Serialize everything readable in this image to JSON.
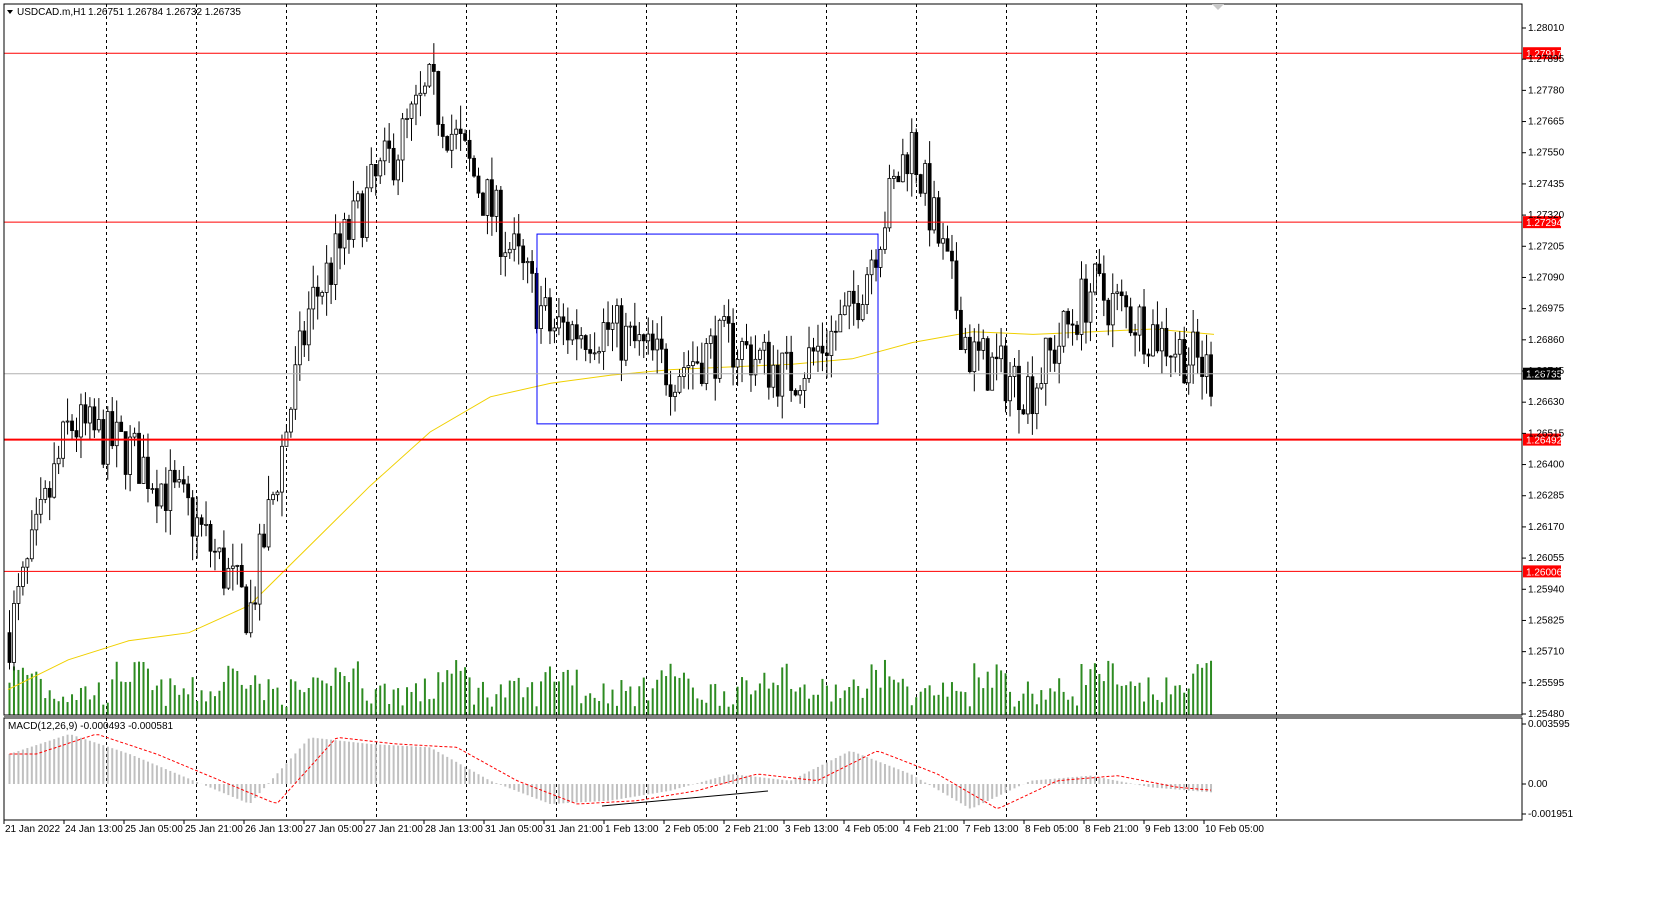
{
  "chart_header": {
    "symbol_label": "USDCAD.m,H1",
    "ohlc": "1.26751 1.26784 1.26732 1.26735"
  },
  "price_axis": {
    "ticks": [
      "1.28010",
      "1.27895",
      "1.27780",
      "1.27665",
      "1.27550",
      "1.27435",
      "1.27320",
      "1.27205",
      "1.27090",
      "1.26975",
      "1.26860",
      "1.26745",
      "1.26630",
      "1.26515",
      "1.26400",
      "1.26285",
      "1.26170",
      "1.26055",
      "1.25940",
      "1.25825",
      "1.25710",
      "1.25595",
      "1.25480"
    ]
  },
  "time_axis": {
    "labels": [
      "21 Jan 2022",
      "24 Jan 13:00",
      "25 Jan 05:00",
      "25 Jan 21:00",
      "26 Jan 13:00",
      "27 Jan 05:00",
      "27 Jan 21:00",
      "28 Jan 13:00",
      "31 Jan 05:00",
      "31 Jan 21:00",
      "1 Feb 13:00",
      "2 Feb 05:00",
      "2 Feb 21:00",
      "3 Feb 13:00",
      "4 Feb 05:00",
      "4 Feb 21:00",
      "7 Feb 13:00",
      "8 Feb 05:00",
      "8 Feb 21:00",
      "9 Feb 13:00",
      "10 Feb 05:00"
    ]
  },
  "levels": [
    {
      "price": 1.27917,
      "label": "1.27917",
      "color": "#ff0000"
    },
    {
      "price": 1.27294,
      "label": "1.27294",
      "color": "#ff0000"
    },
    {
      "price": 1.26492,
      "label": "1.26492",
      "color": "#ff0000"
    },
    {
      "price": 1.26006,
      "label": "1.26006",
      "color": "#ff0000"
    }
  ],
  "current_price": {
    "price": 1.26735,
    "label": "1.26735"
  },
  "macd": {
    "label": "MACD(12,26,9) -0.000493 -0.000581",
    "ticks": [
      "0.003595",
      "0.00",
      "-0.001951"
    ]
  },
  "colors": {
    "up_volume": "#2e8b22",
    "moving_average": "#f0d000",
    "range_box": "#0000ff",
    "macd_histogram": "#c0c0c0",
    "macd_signal": "#ff0000",
    "level_line": "#ff0000"
  },
  "chart_data": {
    "type": "candlestick",
    "symbol": "USDCAD.m",
    "timeframe": "H1",
    "x": [
      "21 Jan 2022",
      "24 Jan 13:00",
      "25 Jan 05:00",
      "25 Jan 21:00",
      "26 Jan 13:00",
      "27 Jan 05:00",
      "27 Jan 21:00",
      "28 Jan 13:00",
      "31 Jan 05:00",
      "31 Jan 21:00",
      "1 Feb 13:00",
      "2 Feb 05:00",
      "2 Feb 21:00",
      "3 Feb 13:00",
      "4 Feb 05:00",
      "4 Feb 21:00",
      "7 Feb 13:00",
      "8 Feb 05:00",
      "8 Feb 21:00",
      "9 Feb 13:00",
      "10 Feb 05:00"
    ],
    "close": [
      1.2578,
      1.2655,
      1.2645,
      1.2622,
      1.2585,
      1.2698,
      1.274,
      1.2778,
      1.2735,
      1.269,
      1.269,
      1.2675,
      1.2685,
      1.2672,
      1.2695,
      1.276,
      1.268,
      1.2668,
      1.2705,
      1.269,
      1.2674
    ],
    "ylim": [
      1.2548,
      1.2806
    ],
    "moving_average": [
      1.2557,
      1.2568,
      1.2575,
      1.2578,
      1.2588,
      1.261,
      1.2632,
      1.2652,
      1.2665,
      1.267,
      1.2673,
      1.2675,
      1.2676,
      1.2677,
      1.2679,
      1.2685,
      1.2689,
      1.2688,
      1.2689,
      1.269,
      1.2688
    ],
    "range_box": {
      "from": "31 Jan 05:00",
      "to": "4 Feb 05:00",
      "high": 1.2725,
      "low": 1.2655
    }
  }
}
